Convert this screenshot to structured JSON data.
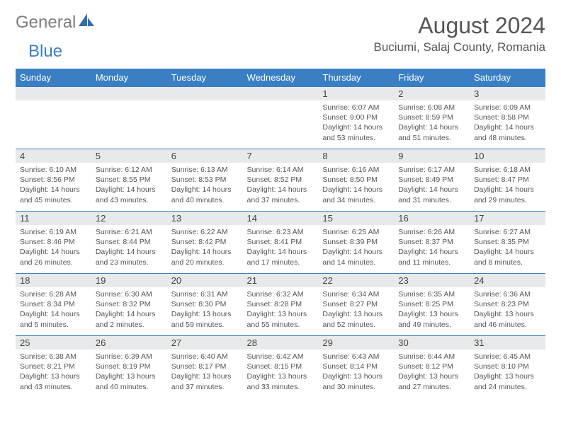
{
  "brand": {
    "word1": "General",
    "word2": "Blue"
  },
  "header": {
    "month_title": "August 2024",
    "location": "Buciumi, Salaj County, Romania"
  },
  "colors": {
    "accent": "#3a7fc4",
    "daynum_bg": "#e8e9ea",
    "text": "#555555",
    "bg": "#ffffff"
  },
  "days_of_week": [
    "Sunday",
    "Monday",
    "Tuesday",
    "Wednesday",
    "Thursday",
    "Friday",
    "Saturday"
  ],
  "weeks": [
    [
      {
        "empty": true
      },
      {
        "empty": true
      },
      {
        "empty": true
      },
      {
        "empty": true
      },
      {
        "day": "1",
        "sunrise": "Sunrise: 6:07 AM",
        "sunset": "Sunset: 9:00 PM",
        "daylight": "Daylight: 14 hours and 53 minutes."
      },
      {
        "day": "2",
        "sunrise": "Sunrise: 6:08 AM",
        "sunset": "Sunset: 8:59 PM",
        "daylight": "Daylight: 14 hours and 51 minutes."
      },
      {
        "day": "3",
        "sunrise": "Sunrise: 6:09 AM",
        "sunset": "Sunset: 8:58 PM",
        "daylight": "Daylight: 14 hours and 48 minutes."
      }
    ],
    [
      {
        "day": "4",
        "sunrise": "Sunrise: 6:10 AM",
        "sunset": "Sunset: 8:56 PM",
        "daylight": "Daylight: 14 hours and 45 minutes."
      },
      {
        "day": "5",
        "sunrise": "Sunrise: 6:12 AM",
        "sunset": "Sunset: 8:55 PM",
        "daylight": "Daylight: 14 hours and 43 minutes."
      },
      {
        "day": "6",
        "sunrise": "Sunrise: 6:13 AM",
        "sunset": "Sunset: 8:53 PM",
        "daylight": "Daylight: 14 hours and 40 minutes."
      },
      {
        "day": "7",
        "sunrise": "Sunrise: 6:14 AM",
        "sunset": "Sunset: 8:52 PM",
        "daylight": "Daylight: 14 hours and 37 minutes."
      },
      {
        "day": "8",
        "sunrise": "Sunrise: 6:16 AM",
        "sunset": "Sunset: 8:50 PM",
        "daylight": "Daylight: 14 hours and 34 minutes."
      },
      {
        "day": "9",
        "sunrise": "Sunrise: 6:17 AM",
        "sunset": "Sunset: 8:49 PM",
        "daylight": "Daylight: 14 hours and 31 minutes."
      },
      {
        "day": "10",
        "sunrise": "Sunrise: 6:18 AM",
        "sunset": "Sunset: 8:47 PM",
        "daylight": "Daylight: 14 hours and 29 minutes."
      }
    ],
    [
      {
        "day": "11",
        "sunrise": "Sunrise: 6:19 AM",
        "sunset": "Sunset: 8:46 PM",
        "daylight": "Daylight: 14 hours and 26 minutes."
      },
      {
        "day": "12",
        "sunrise": "Sunrise: 6:21 AM",
        "sunset": "Sunset: 8:44 PM",
        "daylight": "Daylight: 14 hours and 23 minutes."
      },
      {
        "day": "13",
        "sunrise": "Sunrise: 6:22 AM",
        "sunset": "Sunset: 8:42 PM",
        "daylight": "Daylight: 14 hours and 20 minutes."
      },
      {
        "day": "14",
        "sunrise": "Sunrise: 6:23 AM",
        "sunset": "Sunset: 8:41 PM",
        "daylight": "Daylight: 14 hours and 17 minutes."
      },
      {
        "day": "15",
        "sunrise": "Sunrise: 6:25 AM",
        "sunset": "Sunset: 8:39 PM",
        "daylight": "Daylight: 14 hours and 14 minutes."
      },
      {
        "day": "16",
        "sunrise": "Sunrise: 6:26 AM",
        "sunset": "Sunset: 8:37 PM",
        "daylight": "Daylight: 14 hours and 11 minutes."
      },
      {
        "day": "17",
        "sunrise": "Sunrise: 6:27 AM",
        "sunset": "Sunset: 8:35 PM",
        "daylight": "Daylight: 14 hours and 8 minutes."
      }
    ],
    [
      {
        "day": "18",
        "sunrise": "Sunrise: 6:28 AM",
        "sunset": "Sunset: 8:34 PM",
        "daylight": "Daylight: 14 hours and 5 minutes."
      },
      {
        "day": "19",
        "sunrise": "Sunrise: 6:30 AM",
        "sunset": "Sunset: 8:32 PM",
        "daylight": "Daylight: 14 hours and 2 minutes."
      },
      {
        "day": "20",
        "sunrise": "Sunrise: 6:31 AM",
        "sunset": "Sunset: 8:30 PM",
        "daylight": "Daylight: 13 hours and 59 minutes."
      },
      {
        "day": "21",
        "sunrise": "Sunrise: 6:32 AM",
        "sunset": "Sunset: 8:28 PM",
        "daylight": "Daylight: 13 hours and 55 minutes."
      },
      {
        "day": "22",
        "sunrise": "Sunrise: 6:34 AM",
        "sunset": "Sunset: 8:27 PM",
        "daylight": "Daylight: 13 hours and 52 minutes."
      },
      {
        "day": "23",
        "sunrise": "Sunrise: 6:35 AM",
        "sunset": "Sunset: 8:25 PM",
        "daylight": "Daylight: 13 hours and 49 minutes."
      },
      {
        "day": "24",
        "sunrise": "Sunrise: 6:36 AM",
        "sunset": "Sunset: 8:23 PM",
        "daylight": "Daylight: 13 hours and 46 minutes."
      }
    ],
    [
      {
        "day": "25",
        "sunrise": "Sunrise: 6:38 AM",
        "sunset": "Sunset: 8:21 PM",
        "daylight": "Daylight: 13 hours and 43 minutes."
      },
      {
        "day": "26",
        "sunrise": "Sunrise: 6:39 AM",
        "sunset": "Sunset: 8:19 PM",
        "daylight": "Daylight: 13 hours and 40 minutes."
      },
      {
        "day": "27",
        "sunrise": "Sunrise: 6:40 AM",
        "sunset": "Sunset: 8:17 PM",
        "daylight": "Daylight: 13 hours and 37 minutes."
      },
      {
        "day": "28",
        "sunrise": "Sunrise: 6:42 AM",
        "sunset": "Sunset: 8:15 PM",
        "daylight": "Daylight: 13 hours and 33 minutes."
      },
      {
        "day": "29",
        "sunrise": "Sunrise: 6:43 AM",
        "sunset": "Sunset: 8:14 PM",
        "daylight": "Daylight: 13 hours and 30 minutes."
      },
      {
        "day": "30",
        "sunrise": "Sunrise: 6:44 AM",
        "sunset": "Sunset: 8:12 PM",
        "daylight": "Daylight: 13 hours and 27 minutes."
      },
      {
        "day": "31",
        "sunrise": "Sunrise: 6:45 AM",
        "sunset": "Sunset: 8:10 PM",
        "daylight": "Daylight: 13 hours and 24 minutes."
      }
    ]
  ]
}
